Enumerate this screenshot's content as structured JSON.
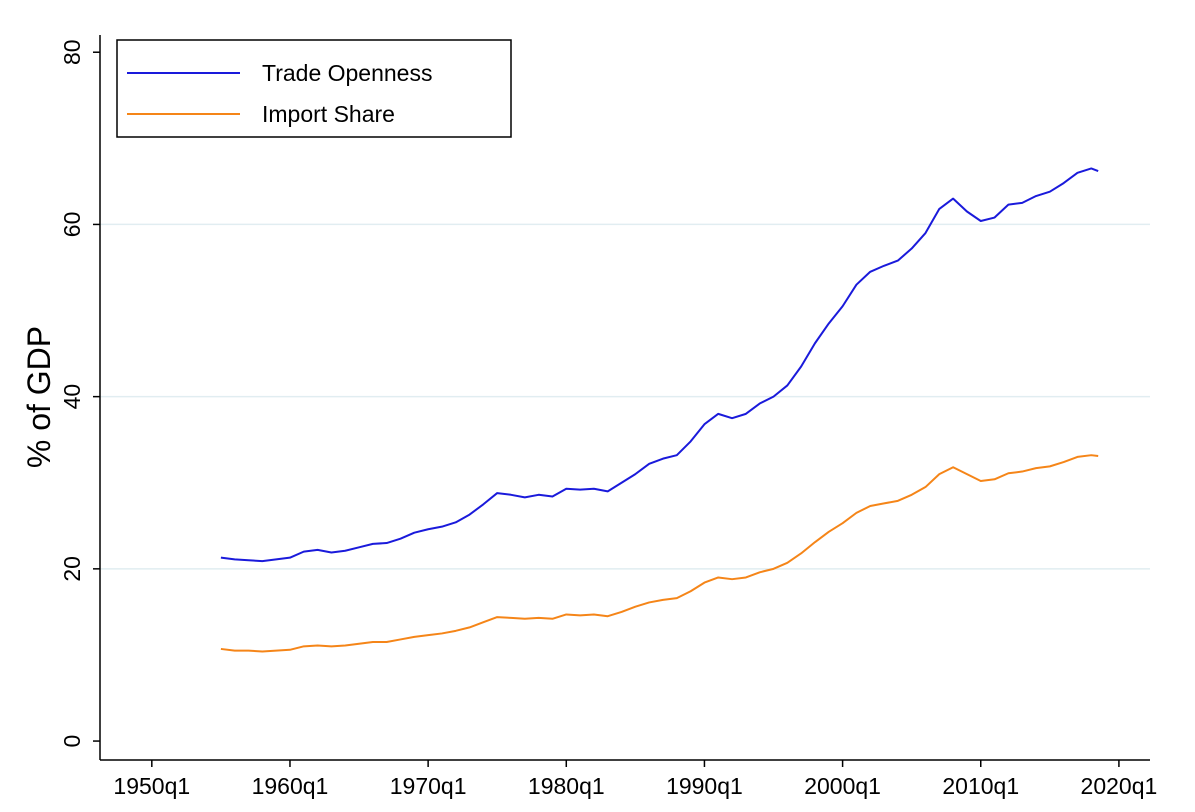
{
  "chart_data": {
    "type": "line",
    "ylabel": "% of GDP",
    "x": [
      "1955q1",
      "1956q1",
      "1957q1",
      "1958q1",
      "1959q1",
      "1960q1",
      "1961q1",
      "1962q1",
      "1963q1",
      "1964q1",
      "1965q1",
      "1966q1",
      "1967q1",
      "1968q1",
      "1969q1",
      "1970q1",
      "1971q1",
      "1972q1",
      "1973q1",
      "1974q1",
      "1975q1",
      "1976q1",
      "1977q1",
      "1978q1",
      "1979q1",
      "1980q1",
      "1981q1",
      "1982q1",
      "1983q1",
      "1984q1",
      "1985q1",
      "1986q1",
      "1987q1",
      "1988q1",
      "1989q1",
      "1990q1",
      "1991q1",
      "1992q1",
      "1993q1",
      "1994q1",
      "1995q1",
      "1996q1",
      "1997q1",
      "1998q1",
      "1999q1",
      "2000q1",
      "2001q1",
      "2002q1",
      "2003q1",
      "2004q1",
      "2005q1",
      "2006q1",
      "2007q1",
      "2008q1",
      "2009q1",
      "2010q1",
      "2011q1",
      "2012q1",
      "2013q1",
      "2014q1",
      "2015q1",
      "2016q1",
      "2017q1",
      "2018q1",
      "2018q3"
    ],
    "series": [
      {
        "name": "Trade Openness",
        "color": "#1a1adb",
        "values": [
          21.3,
          21.1,
          21.0,
          20.9,
          21.1,
          21.3,
          22.0,
          22.2,
          21.9,
          22.1,
          22.5,
          22.9,
          23.0,
          23.5,
          24.2,
          24.6,
          24.9,
          25.4,
          26.3,
          27.5,
          28.8,
          28.6,
          28.3,
          28.6,
          28.4,
          29.3,
          29.2,
          29.3,
          29.0,
          30.0,
          31.0,
          32.2,
          32.8,
          33.2,
          34.8,
          36.8,
          38.0,
          37.5,
          38.0,
          39.2,
          40.0,
          41.3,
          43.5,
          46.2,
          48.5,
          50.5,
          53.0,
          54.5,
          55.2,
          55.8,
          57.2,
          59.0,
          61.8,
          63.0,
          61.5,
          60.4,
          60.8,
          62.3,
          62.5,
          63.3,
          63.8,
          64.8,
          66.0,
          66.5,
          66.2
        ]
      },
      {
        "name": "Import Share",
        "color": "#f58518",
        "values": [
          10.7,
          10.5,
          10.5,
          10.4,
          10.5,
          10.6,
          11.0,
          11.1,
          11.0,
          11.1,
          11.3,
          11.5,
          11.5,
          11.8,
          12.1,
          12.3,
          12.5,
          12.8,
          13.2,
          13.8,
          14.4,
          14.3,
          14.2,
          14.3,
          14.2,
          14.7,
          14.6,
          14.7,
          14.5,
          15.0,
          15.6,
          16.1,
          16.4,
          16.6,
          17.4,
          18.4,
          19.0,
          18.8,
          19.0,
          19.6,
          20.0,
          20.7,
          21.8,
          23.1,
          24.3,
          25.3,
          26.5,
          27.3,
          27.6,
          27.9,
          28.6,
          29.5,
          31.0,
          31.8,
          31.0,
          30.2,
          30.4,
          31.1,
          31.3,
          31.7,
          31.9,
          32.4,
          33.0,
          33.2,
          33.1
        ]
      }
    ],
    "xlim": [
      "1946q2",
      "2022q2"
    ],
    "xticks": [
      "1950q1",
      "1960q1",
      "1970q1",
      "1980q1",
      "1990q1",
      "2000q1",
      "2010q1",
      "2020q1"
    ],
    "ylim": [
      -2.2,
      82
    ],
    "yticks": [
      0,
      20,
      40,
      60,
      80
    ],
    "grid": true,
    "legend": "top-left"
  }
}
